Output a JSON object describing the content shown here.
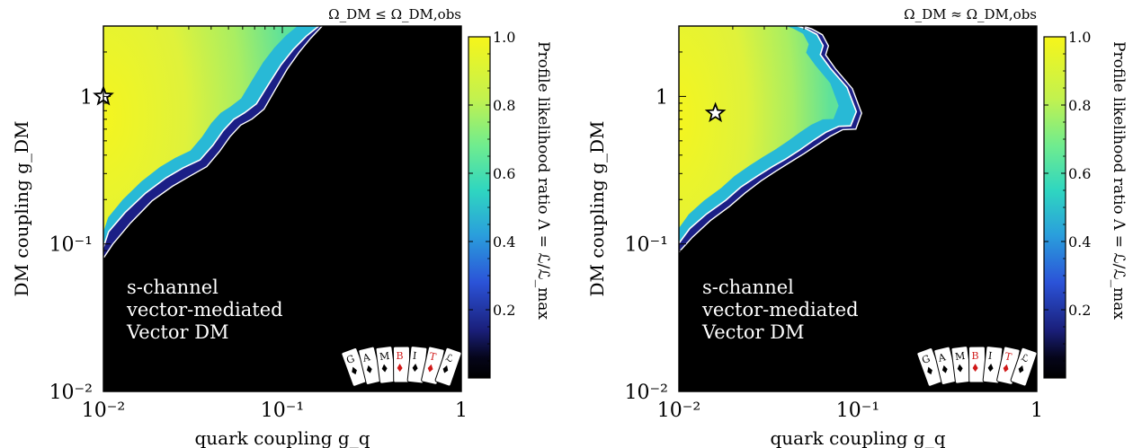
{
  "chart_data": [
    {
      "type": "heatmap",
      "title": "Ω_DM ≤ Ω_DM,obs",
      "xlabel": "quark coupling g_q",
      "ylabel": "DM coupling g_DM",
      "x_scale": "log",
      "y_scale": "log",
      "xlim": [
        0.01,
        1
      ],
      "ylim": [
        0.01,
        3.0
      ],
      "x_ticks": [
        "10⁻²",
        "10⁻¹",
        "1"
      ],
      "y_ticks": [
        "10⁻²",
        "10⁻¹",
        "1"
      ],
      "colorbar": {
        "label": "Profile likelihood ratio Λ = ℒ/ℒ_max",
        "range": [
          0,
          1
        ],
        "ticks": [
          "0.2",
          "0.4",
          "0.6",
          "0.8",
          "1.0"
        ],
        "colormap": "viridis"
      },
      "annotation": [
        "s-channel",
        "vector-mediated",
        "Vector DM"
      ],
      "logo": [
        "G",
        "A",
        "M",
        "B",
        "I",
        "T",
        "ℒ"
      ],
      "best_fit": {
        "x": 0.01,
        "y": 1.0
      },
      "contour_1sigma_boundary": {
        "x": [
          0.01,
          0.0107,
          0.0132,
          0.0172,
          0.0224,
          0.0279,
          0.0347,
          0.0409,
          0.0468,
          0.0535,
          0.0615,
          0.0717,
          0.0838,
          0.0984,
          0.1154,
          0.1361,
          0.16
        ],
        "y": [
          0.095,
          0.121,
          0.163,
          0.221,
          0.281,
          0.328,
          0.371,
          0.466,
          0.588,
          0.699,
          0.775,
          0.891,
          1.21,
          1.64,
          2.09,
          2.56,
          3.0
        ]
      },
      "contour_2sigma_boundary": {
        "x": [
          0.01,
          0.0113,
          0.0142,
          0.0187,
          0.0243,
          0.0304,
          0.0378,
          0.0446,
          0.051,
          0.0585,
          0.0677,
          0.079,
          0.0916,
          0.1065,
          0.124,
          0.144,
          0.167
        ],
        "y": [
          0.08,
          0.1,
          0.139,
          0.196,
          0.246,
          0.288,
          0.334,
          0.424,
          0.534,
          0.639,
          0.702,
          0.82,
          1.12,
          1.53,
          1.99,
          2.48,
          3.0
        ]
      }
    },
    {
      "type": "heatmap",
      "title": "Ω_DM ≈ Ω_DM,obs",
      "xlabel": "quark coupling g_q",
      "ylabel": "DM coupling g_DM",
      "x_scale": "log",
      "y_scale": "log",
      "xlim": [
        0.01,
        1
      ],
      "ylim": [
        0.01,
        3.0
      ],
      "x_ticks": [
        "10⁻²",
        "10⁻¹",
        "1"
      ],
      "y_ticks": [
        "10⁻²",
        "10⁻¹",
        "1"
      ],
      "colorbar": {
        "label": "Profile likelihood ratio Λ = ℒ/ℒ_max",
        "range": [
          0,
          1
        ],
        "ticks": [
          "0.2",
          "0.4",
          "0.6",
          "0.8",
          "1.0"
        ],
        "colormap": "viridis"
      },
      "annotation": [
        "s-channel",
        "vector-mediated",
        "Vector DM"
      ],
      "logo": [
        "G",
        "A",
        "M",
        "B",
        "I",
        "T",
        "ℒ"
      ],
      "best_fit": {
        "x": 0.016,
        "y": 0.77
      },
      "contour_1sigma_boundary": {
        "x": [
          0.01,
          0.0115,
          0.0143,
          0.0183,
          0.0221,
          0.0274,
          0.0333,
          0.0395,
          0.0478,
          0.0569,
          0.0661,
          0.0784,
          0.0912,
          0.0981,
          0.087,
          0.0703,
          0.0617,
          0.064,
          0.0591,
          0.0513,
          0.046
        ],
        "y": [
          0.101,
          0.127,
          0.16,
          0.198,
          0.242,
          0.288,
          0.334,
          0.376,
          0.437,
          0.507,
          0.571,
          0.627,
          0.631,
          0.788,
          1.15,
          1.55,
          1.92,
          2.21,
          2.63,
          2.88,
          3.0
        ]
      },
      "contour_2sigma_boundary": {
        "x": [
          0.01,
          0.0119,
          0.015,
          0.0192,
          0.0234,
          0.0288,
          0.0348,
          0.0412,
          0.05,
          0.0597,
          0.07,
          0.0823,
          0.0975,
          0.105,
          0.0932,
          0.0752,
          0.0661,
          0.0685,
          0.0634,
          0.0553,
          0.0495
        ],
        "y": [
          0.088,
          0.111,
          0.144,
          0.18,
          0.221,
          0.268,
          0.311,
          0.354,
          0.409,
          0.472,
          0.536,
          0.595,
          0.6,
          0.77,
          1.13,
          1.53,
          1.91,
          2.2,
          2.62,
          2.87,
          3.0
        ]
      }
    }
  ]
}
